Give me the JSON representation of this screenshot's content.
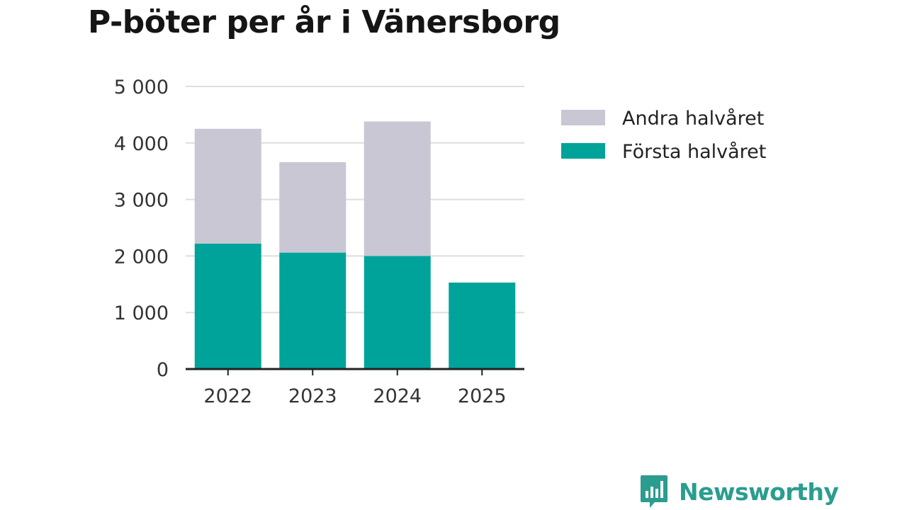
{
  "title": "P-böter per år i Vänersborg",
  "brand": "Newsworthy",
  "colors": {
    "first_half": "#00a39a",
    "second_half": "#c8c7d3",
    "grid": "#dedede",
    "axis": "#222222",
    "brand": "#2a9d8f"
  },
  "chart_data": {
    "type": "bar",
    "stacked": true,
    "categories": [
      "2022",
      "2023",
      "2024",
      "2025"
    ],
    "series": [
      {
        "name": "Första halvåret",
        "values": [
          2220,
          2060,
          2000,
          1530
        ],
        "color": "#00a39a"
      },
      {
        "name": "Andra halvåret",
        "values": [
          2030,
          1600,
          2380,
          null
        ],
        "color": "#c8c7d3"
      }
    ],
    "ylim": [
      0,
      5000
    ],
    "yticks": [
      0,
      1000,
      2000,
      3000,
      4000,
      5000
    ],
    "ytick_labels": [
      "0",
      "1 000",
      "2 000",
      "3 000",
      "4 000",
      "5 000"
    ],
    "grid": true,
    "legend": {
      "placement": "right",
      "items": [
        {
          "label": "Andra halvåret",
          "color": "#c8c7d3"
        },
        {
          "label": "Första halvåret",
          "color": "#00a39a"
        }
      ]
    }
  }
}
